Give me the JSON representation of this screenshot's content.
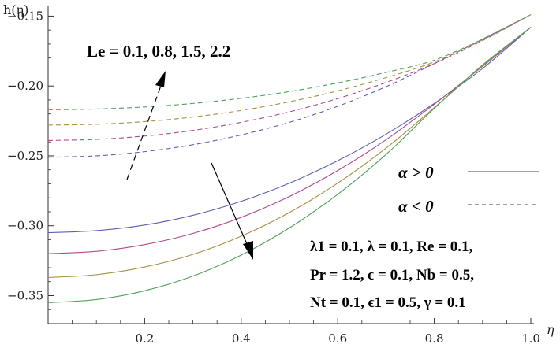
{
  "chart_data": {
    "type": "line",
    "xlabel": "η",
    "ylabel": "h(η)",
    "xlim": [
      0,
      1.0
    ],
    "ylim": [
      -0.37,
      -0.143
    ],
    "x_ticks": [
      "0.2",
      "0.4",
      "0.6",
      "0.8",
      "1.0"
    ],
    "y_ticks": [
      "-0.15",
      "-0.20",
      "-0.25",
      "-0.30",
      "-0.35"
    ],
    "x": [
      0,
      0.1,
      0.2,
      0.3,
      0.4,
      0.5,
      0.6,
      0.7,
      0.8,
      0.9,
      1.0
    ],
    "series": [
      {
        "group": "alpha_pos",
        "color": "#5f5fb5",
        "dash": false,
        "values": [
          -0.305,
          -0.3035,
          -0.2995,
          -0.2925,
          -0.2825,
          -0.2695,
          -0.2535,
          -0.2345,
          -0.2125,
          -0.1875,
          -0.158
        ]
      },
      {
        "group": "alpha_pos",
        "color": "#b04a8a",
        "dash": false,
        "values": [
          -0.32,
          -0.3183,
          -0.3135,
          -0.3055,
          -0.294,
          -0.279,
          -0.2605,
          -0.2385,
          -0.213,
          -0.186,
          -0.158
        ]
      },
      {
        "group": "alpha_pos",
        "color": "#a89040",
        "dash": false,
        "values": [
          -0.337,
          -0.335,
          -0.3295,
          -0.3205,
          -0.3075,
          -0.2905,
          -0.2695,
          -0.2445,
          -0.2155,
          -0.1855,
          -0.158
        ]
      },
      {
        "group": "alpha_pos",
        "color": "#4fa05a",
        "dash": false,
        "values": [
          -0.355,
          -0.3528,
          -0.3465,
          -0.336,
          -0.321,
          -0.3015,
          -0.2775,
          -0.249,
          -0.216,
          -0.185,
          -0.158
        ]
      },
      {
        "group": "alpha_neg",
        "color": "#5f5fb5",
        "dash": true,
        "values": [
          -0.251,
          -0.25,
          -0.247,
          -0.242,
          -0.235,
          -0.226,
          -0.2145,
          -0.2005,
          -0.184,
          -0.1665,
          -0.149
        ]
      },
      {
        "group": "alpha_neg",
        "color": "#b04a8a",
        "dash": true,
        "values": [
          -0.239,
          -0.2382,
          -0.2358,
          -0.2318,
          -0.226,
          -0.2185,
          -0.209,
          -0.1975,
          -0.184,
          -0.1675,
          -0.149
        ]
      },
      {
        "group": "alpha_neg",
        "color": "#a89040",
        "dash": true,
        "values": [
          -0.228,
          -0.2274,
          -0.2255,
          -0.2222,
          -0.2175,
          -0.2113,
          -0.2035,
          -0.194,
          -0.1828,
          -0.167,
          -0.149
        ]
      },
      {
        "group": "alpha_neg",
        "color": "#4fa05a",
        "dash": true,
        "values": [
          -0.217,
          -0.2165,
          -0.215,
          -0.2125,
          -0.2088,
          -0.204,
          -0.1978,
          -0.1903,
          -0.1815,
          -0.1665,
          -0.149
        ]
      }
    ],
    "annotations": {
      "le_label": "Le = 0.1, 0.8, 1.5, 2.2",
      "legend_pos": "α > 0",
      "legend_neg": "α < 0",
      "params": [
        "λ1 = 0.1, λ = 0.1, Re = 0.1,",
        "Pr = 1.2, ϵ = 0.1, Nb = 0.5,",
        "Nt = 0.1, ϵ1 = 0.5, γ = 0.1"
      ]
    },
    "grid": false
  }
}
